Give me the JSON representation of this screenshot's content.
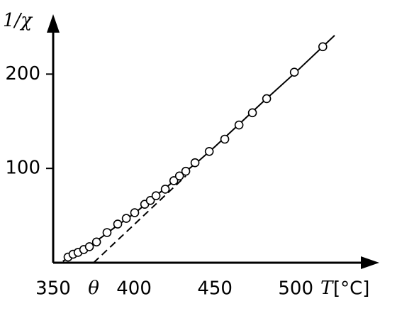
{
  "chart_data": {
    "type": "scatter",
    "y_label": "1/χ",
    "x_label": "T",
    "x_unit": "[°C]",
    "xlim": [
      350,
      549
    ],
    "ylim": [
      0,
      259
    ],
    "xticks": [
      350,
      {
        "value": 375,
        "label": "θ"
      },
      400,
      450,
      500
    ],
    "yticks": [
      100,
      200
    ],
    "color": "#000000",
    "points": {
      "x": [
        359.2,
        362.3,
        365.4,
        368.9,
        372.4,
        376.8,
        383.3,
        389.9,
        395.2,
        400.4,
        406.6,
        410.1,
        413.6,
        419.3,
        424.6,
        428.1,
        432.0,
        437.7,
        446.5,
        456.1,
        464.9,
        473.2,
        482.0,
        499.1,
        516.7
      ],
      "y": [
        6,
        9,
        11,
        14,
        17,
        22,
        32,
        41,
        47,
        53,
        62,
        66,
        71,
        78,
        87,
        92,
        97,
        106,
        118,
        131,
        146,
        159,
        174,
        202,
        229
      ]
    },
    "curve": {
      "x": [
        356,
        360,
        365,
        372,
        380,
        390,
        400,
        410,
        420,
        430,
        440,
        450,
        460,
        480,
        500,
        524
      ],
      "y": [
        1.5,
        6,
        11,
        18,
        27,
        40,
        52,
        66,
        80,
        94,
        108,
        123,
        139,
        171,
        202,
        241
      ]
    },
    "asymptote": {
      "x": [
        375,
        432
      ],
      "y": [
        0,
        92
      ]
    }
  }
}
